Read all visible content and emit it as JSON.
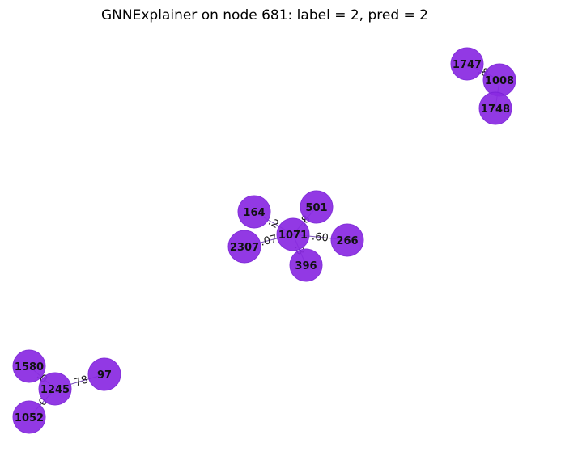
{
  "figure": {
    "title": "GNNExplainer on node 681: label = 2, pred = 2"
  },
  "graph": {
    "nodes": [
      {
        "id": "1747"
      },
      {
        "id": "1008"
      },
      {
        "id": "1748"
      },
      {
        "id": "164"
      },
      {
        "id": "501"
      },
      {
        "id": "1071"
      },
      {
        "id": "266"
      },
      {
        "id": "2307"
      },
      {
        "id": "396"
      },
      {
        "id": "1580"
      },
      {
        "id": "97"
      },
      {
        "id": "1245"
      },
      {
        "id": "1052"
      }
    ],
    "edges": [
      {
        "source": "1747",
        "target": "1008",
        "label": ".8"
      },
      {
        "source": "1008",
        "target": "1748",
        "label": ""
      },
      {
        "source": "164",
        "target": "1071",
        "label": ".2"
      },
      {
        "source": "501",
        "target": "1071",
        "label": ".8"
      },
      {
        "source": "2307",
        "target": "1071",
        "label": ".07"
      },
      {
        "source": "266",
        "target": "1071",
        "label": ".60"
      },
      {
        "source": "396",
        "target": "1071",
        "label": ".3"
      },
      {
        "source": "1580",
        "target": "1245",
        "label": ".0"
      },
      {
        "source": "97",
        "target": "1245",
        "label": ".78"
      },
      {
        "source": "1052",
        "target": "1245",
        "label": ".0"
      }
    ],
    "colors": {
      "node": "#8a2be2",
      "edge": "#6a3fb0",
      "text": "#111111"
    }
  }
}
